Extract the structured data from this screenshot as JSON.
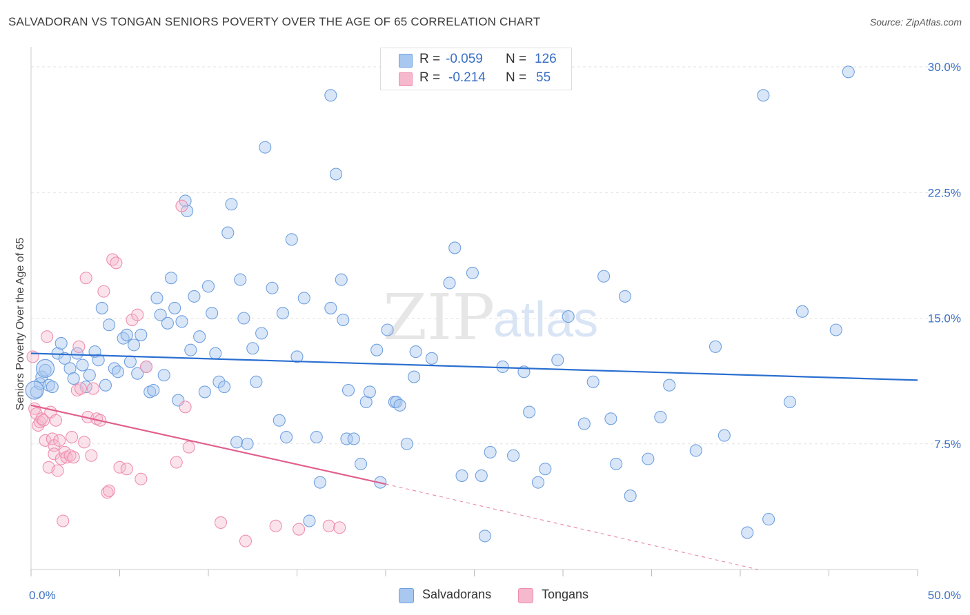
{
  "title": "SALVADORAN VS TONGAN SENIORS POVERTY OVER THE AGE OF 65 CORRELATION CHART",
  "source": "Source: ZipAtlas.com",
  "watermark": {
    "zip": "ZIP",
    "atlas": "atlas"
  },
  "legend": {
    "rows": [
      {
        "r_label": "R =",
        "r_value": "-0.059",
        "n_label": "N =",
        "n_value": "126",
        "color": "#a9c8f0"
      },
      {
        "r_label": "R =",
        "r_value": "-0.214",
        "n_label": "N =",
        "n_value": "55",
        "color": "#f5b8cc"
      }
    ]
  },
  "bottom_legend": [
    {
      "label": "Salvadorans",
      "color": "#a9c8f0"
    },
    {
      "label": "Tongans",
      "color": "#f5b8cc"
    }
  ],
  "chart_data": {
    "type": "scatter",
    "title": "SALVADORAN VS TONGAN SENIORS POVERTY OVER THE AGE OF 65 CORRELATION CHART",
    "xlabel": "",
    "ylabel": "Seniors Poverty Over the Age of 65",
    "xlim": [
      0,
      50
    ],
    "ylim": [
      0,
      30.5
    ],
    "x_tick_labels": [
      "0.0%",
      "50.0%"
    ],
    "y_ticks": [
      7.5,
      15.0,
      22.5,
      30.0
    ],
    "y_tick_labels": [
      "7.5%",
      "15.0%",
      "22.5%",
      "30.0%"
    ],
    "grid": true,
    "legend_position": "top-center",
    "series": [
      {
        "name": "Salvadorans",
        "color": "#6fa0e0",
        "fill": "#a9c8f0",
        "trend": {
          "x": [
            0,
            50
          ],
          "y": [
            12.9,
            11.3
          ],
          "color": "#2a6fd0"
        },
        "points": [
          [
            0.3,
            10.6
          ],
          [
            0.5,
            11.1
          ],
          [
            0.6,
            11.5
          ],
          [
            0.8,
            11.9
          ],
          [
            1.0,
            11.0
          ],
          [
            1.2,
            10.9
          ],
          [
            1.5,
            12.9
          ],
          [
            1.7,
            13.5
          ],
          [
            1.9,
            12.6
          ],
          [
            2.2,
            12.0
          ],
          [
            2.4,
            11.4
          ],
          [
            2.6,
            12.9
          ],
          [
            2.9,
            12.2
          ],
          [
            3.1,
            10.9
          ],
          [
            3.3,
            11.6
          ],
          [
            3.6,
            13.0
          ],
          [
            3.8,
            12.5
          ],
          [
            4.0,
            15.6
          ],
          [
            4.2,
            11.0
          ],
          [
            4.4,
            14.6
          ],
          [
            4.7,
            12.0
          ],
          [
            4.9,
            11.8
          ],
          [
            5.2,
            13.8
          ],
          [
            5.4,
            14.0
          ],
          [
            5.6,
            12.4
          ],
          [
            5.8,
            13.4
          ],
          [
            6.0,
            11.7
          ],
          [
            6.2,
            14.0
          ],
          [
            6.5,
            12.1
          ],
          [
            6.7,
            10.6
          ],
          [
            6.9,
            10.7
          ],
          [
            7.1,
            16.2
          ],
          [
            7.3,
            15.2
          ],
          [
            7.5,
            11.6
          ],
          [
            7.7,
            14.7
          ],
          [
            7.9,
            17.4
          ],
          [
            8.1,
            15.6
          ],
          [
            8.3,
            10.1
          ],
          [
            8.5,
            14.8
          ],
          [
            8.7,
            22.0
          ],
          [
            8.8,
            21.4
          ],
          [
            9.0,
            13.1
          ],
          [
            9.2,
            16.3
          ],
          [
            9.5,
            13.9
          ],
          [
            9.8,
            10.6
          ],
          [
            10.0,
            16.9
          ],
          [
            10.2,
            15.3
          ],
          [
            10.4,
            12.9
          ],
          [
            10.6,
            11.2
          ],
          [
            10.9,
            10.9
          ],
          [
            11.1,
            20.1
          ],
          [
            11.3,
            21.8
          ],
          [
            11.6,
            7.6
          ],
          [
            11.8,
            17.3
          ],
          [
            12.0,
            15.0
          ],
          [
            12.2,
            7.5
          ],
          [
            12.5,
            13.2
          ],
          [
            12.7,
            11.2
          ],
          [
            13.0,
            14.1
          ],
          [
            13.2,
            25.2
          ],
          [
            13.6,
            16.8
          ],
          [
            14.0,
            8.9
          ],
          [
            14.2,
            15.3
          ],
          [
            14.4,
            7.9
          ],
          [
            14.7,
            19.7
          ],
          [
            15.0,
            12.7
          ],
          [
            15.4,
            16.2
          ],
          [
            15.7,
            2.9
          ],
          [
            16.1,
            7.9
          ],
          [
            16.3,
            5.2
          ],
          [
            16.9,
            15.6
          ],
          [
            16.9,
            28.3
          ],
          [
            17.2,
            23.6
          ],
          [
            17.5,
            17.3
          ],
          [
            17.6,
            14.9
          ],
          [
            17.8,
            7.8
          ],
          [
            17.9,
            10.7
          ],
          [
            18.2,
            7.8
          ],
          [
            18.6,
            6.3
          ],
          [
            18.9,
            10.0
          ],
          [
            19.1,
            10.6
          ],
          [
            19.5,
            13.1
          ],
          [
            19.7,
            5.2
          ],
          [
            20.1,
            14.3
          ],
          [
            20.5,
            10.0
          ],
          [
            20.6,
            10.0
          ],
          [
            20.8,
            9.8
          ],
          [
            21.2,
            7.5
          ],
          [
            21.6,
            11.5
          ],
          [
            21.7,
            13.0
          ],
          [
            22.6,
            12.6
          ],
          [
            23.6,
            17.1
          ],
          [
            23.9,
            19.2
          ],
          [
            24.3,
            5.6
          ],
          [
            24.9,
            17.7
          ],
          [
            25.4,
            5.6
          ],
          [
            25.6,
            2.0
          ],
          [
            25.9,
            7.0
          ],
          [
            26.6,
            12.1
          ],
          [
            27.2,
            6.8
          ],
          [
            27.8,
            11.8
          ],
          [
            28.1,
            9.4
          ],
          [
            28.6,
            5.2
          ],
          [
            29.0,
            6.0
          ],
          [
            29.7,
            12.5
          ],
          [
            30.3,
            15.1
          ],
          [
            31.2,
            8.7
          ],
          [
            31.7,
            11.2
          ],
          [
            32.3,
            17.5
          ],
          [
            32.7,
            9.0
          ],
          [
            33.0,
            6.3
          ],
          [
            33.5,
            16.3
          ],
          [
            33.8,
            4.4
          ],
          [
            34.8,
            6.6
          ],
          [
            35.5,
            9.1
          ],
          [
            36.0,
            11.0
          ],
          [
            37.5,
            7.1
          ],
          [
            38.6,
            13.3
          ],
          [
            39.1,
            8.0
          ],
          [
            40.4,
            2.2
          ],
          [
            41.3,
            28.3
          ],
          [
            41.6,
            3.0
          ],
          [
            42.8,
            10.0
          ],
          [
            43.5,
            15.4
          ],
          [
            45.4,
            14.3
          ],
          [
            46.1,
            29.7
          ]
        ],
        "big_points": [
          [
            0.2,
            10.7
          ],
          [
            0.8,
            12.0
          ]
        ]
      },
      {
        "name": "Tongans",
        "color": "#ef8fb0",
        "fill": "#f5b8cc",
        "trend": {
          "x": [
            0,
            20
          ],
          "y": [
            9.8,
            5.1
          ],
          "color": "#e0608e"
        },
        "trend_dashed": {
          "x": [
            20,
            41
          ],
          "y": [
            5.1,
            0.0
          ]
        },
        "points": [
          [
            0.1,
            12.7
          ],
          [
            0.2,
            9.6
          ],
          [
            0.3,
            9.3
          ],
          [
            0.4,
            8.6
          ],
          [
            0.5,
            8.8
          ],
          [
            0.6,
            9.0
          ],
          [
            0.7,
            8.9
          ],
          [
            0.8,
            7.7
          ],
          [
            0.9,
            13.9
          ],
          [
            1.0,
            6.1
          ],
          [
            1.1,
            9.4
          ],
          [
            1.2,
            7.8
          ],
          [
            1.3,
            7.4
          ],
          [
            1.3,
            6.9
          ],
          [
            1.4,
            8.9
          ],
          [
            1.5,
            5.9
          ],
          [
            1.6,
            7.7
          ],
          [
            1.7,
            6.6
          ],
          [
            1.8,
            2.9
          ],
          [
            1.9,
            7.0
          ],
          [
            2.0,
            6.7
          ],
          [
            2.2,
            6.8
          ],
          [
            2.3,
            7.9
          ],
          [
            2.4,
            6.7
          ],
          [
            2.6,
            10.7
          ],
          [
            2.7,
            13.3
          ],
          [
            2.8,
            10.8
          ],
          [
            3.0,
            7.6
          ],
          [
            3.1,
            17.4
          ],
          [
            3.2,
            9.1
          ],
          [
            3.4,
            6.8
          ],
          [
            3.5,
            10.8
          ],
          [
            3.7,
            9.0
          ],
          [
            3.9,
            8.9
          ],
          [
            4.1,
            16.6
          ],
          [
            4.3,
            4.6
          ],
          [
            4.4,
            4.7
          ],
          [
            4.6,
            18.5
          ],
          [
            4.8,
            18.3
          ],
          [
            5.0,
            6.1
          ],
          [
            5.4,
            6.0
          ],
          [
            5.7,
            14.9
          ],
          [
            6.0,
            15.2
          ],
          [
            6.2,
            5.4
          ],
          [
            6.5,
            12.1
          ],
          [
            8.2,
            6.4
          ],
          [
            8.5,
            21.7
          ],
          [
            8.7,
            9.7
          ],
          [
            8.9,
            7.3
          ],
          [
            10.7,
            2.8
          ],
          [
            12.1,
            1.7
          ],
          [
            13.8,
            2.6
          ],
          [
            15.1,
            2.4
          ],
          [
            16.8,
            2.6
          ],
          [
            17.4,
            2.5
          ]
        ]
      }
    ]
  }
}
